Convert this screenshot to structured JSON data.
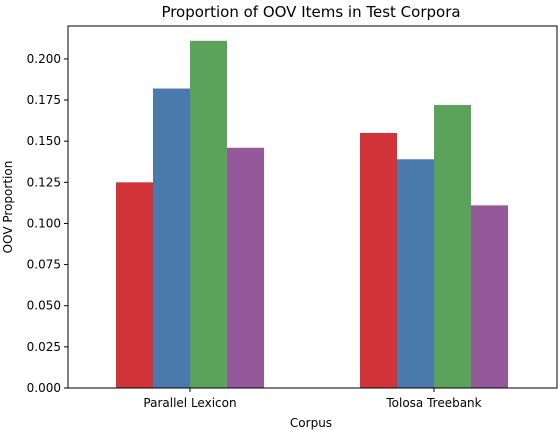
{
  "chart_data": {
    "type": "bar",
    "title": "Proportion of OOV Items in Test Corpora",
    "xlabel": "Corpus",
    "ylabel": "OOV Proportion",
    "categories": [
      "Parallel Lexicon",
      "Tolosa Treebank"
    ],
    "series": [
      {
        "values": [
          0.125,
          0.155
        ],
        "color": "#d13438"
      },
      {
        "values": [
          0.182,
          0.139
        ],
        "color": "#4a7aab"
      },
      {
        "values": [
          0.211,
          0.172
        ],
        "color": "#5ba25a"
      },
      {
        "values": [
          0.146,
          0.111
        ],
        "color": "#93599b"
      }
    ],
    "ylim": [
      0,
      0.22
    ],
    "yticks": [
      "0.000",
      "0.025",
      "0.050",
      "0.075",
      "0.100",
      "0.125",
      "0.150",
      "0.175",
      "0.200"
    ],
    "grid": false,
    "legend": "none"
  }
}
